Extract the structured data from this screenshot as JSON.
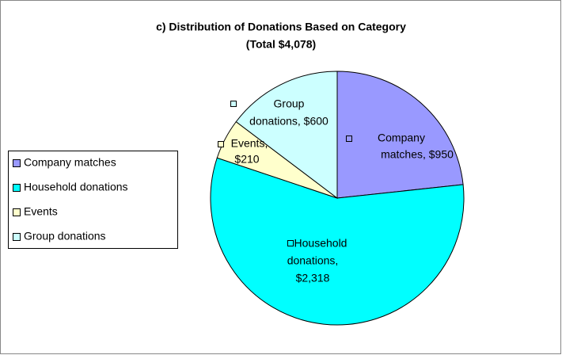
{
  "chart_data": {
    "type": "pie",
    "title": [
      "c) Distribution of Donations Based on Category",
      "(Total $4,078)"
    ],
    "categories": [
      "Company matches",
      "Household donations",
      "Events",
      "Group donations"
    ],
    "values": [
      950,
      2318,
      210,
      600
    ],
    "value_labels": [
      [
        "Company",
        "matches, $950"
      ],
      [
        "Household",
        "donations,",
        "$2,318"
      ],
      [
        "Events,",
        "$210"
      ],
      [
        "Group",
        "donations, $600"
      ]
    ],
    "colors": [
      "#9999ff",
      "#00ffff",
      "#ffffcc",
      "#ccffff"
    ],
    "legend": "left"
  }
}
